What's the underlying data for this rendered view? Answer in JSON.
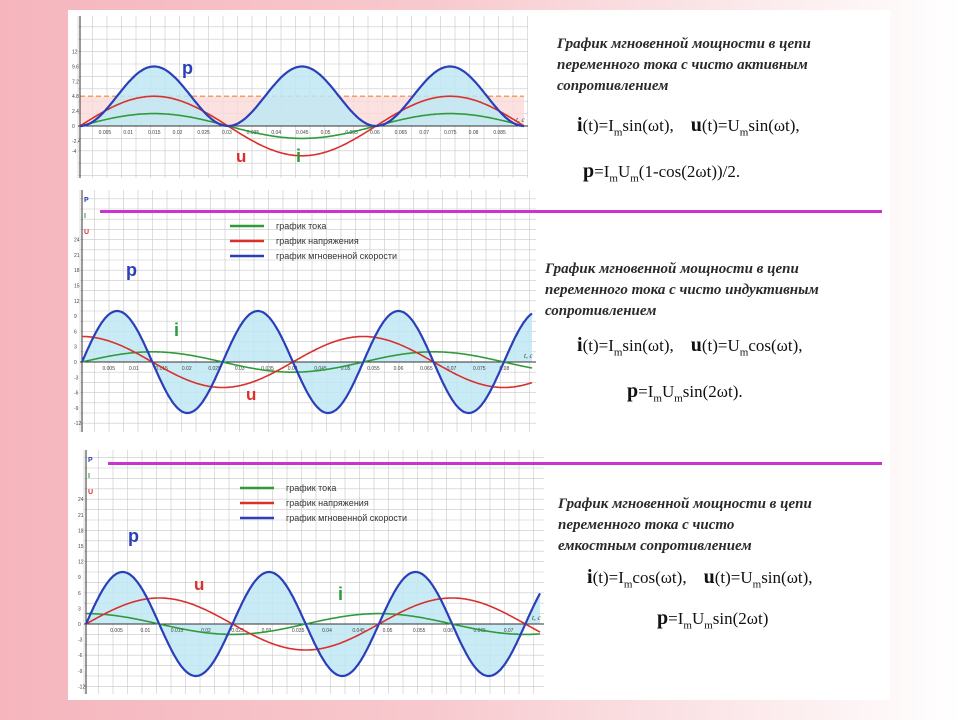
{
  "colors": {
    "power": "#2a3fb8",
    "current": "#2e9a3a",
    "voltage": "#d9302c",
    "fill": "#bfe8f3",
    "grid": "#c8c8c8",
    "avg_line": "#f0a060",
    "avg_band": "#fbdada",
    "divider": "#cc33cc",
    "label_p": "#2a3fb8",
    "label_i": "#2e9a3a",
    "label_u": "#d9302c"
  },
  "panels": [
    {
      "title": "График мгновенной мощности в цепи переменного тока с чисто активным сопротивлением",
      "title_lines": [
        "График мгновенной мощности в цепи",
        "переменного тока с чисто активным",
        "сопротивлением"
      ],
      "formula1": {
        "i_sym": "i",
        "i_text": "(t)=I",
        "i_sub": "m",
        "i_rest": "sin(ωt),",
        "u_sym": "u",
        "u_text": "(t)=U",
        "u_sub": "m",
        "u_rest": "sin(ωt),"
      },
      "formula2": {
        "p_sym": "p",
        "text1": "=I",
        "sub1": "m",
        "text2": "U",
        "sub2": "m",
        "rest": "(1-cos(2ωt))/2."
      },
      "labels": {
        "p": "p",
        "i": "i",
        "u": "u"
      },
      "legend": [],
      "y_axis_labels": [],
      "x_axis_label": "t, c",
      "y_ticks": [
        "-4",
        "-2.4",
        "0",
        "2.4",
        "4.8",
        "7.2",
        "9.6",
        "12"
      ],
      "x_ticks": [
        "0.005",
        "0.01",
        "0.015",
        "0.02",
        "0.025",
        "0.03",
        "0.035",
        "0.04",
        "0.045",
        "0.05",
        "0.055",
        "0.06",
        "0.065",
        "0.07",
        "0.075",
        "0.08",
        "0.085"
      ]
    },
    {
      "title": "График мгновенной мощности в цепи переменного тока с чисто индуктивным сопротивлением",
      "title_lines": [
        "График мгновенной мощности в цепи",
        "переменного тока с чисто индуктивным",
        "сопротивлением"
      ],
      "formula1": {
        "i_sym": "i",
        "i_text": "(t)=I",
        "i_sub": "m",
        "i_rest": "sin(ωt),",
        "u_sym": "u",
        "u_text": "(t)=U",
        "u_sub": "m",
        "u_rest": "cos(ωt),"
      },
      "formula2": {
        "p_sym": "p",
        "text1": "=I",
        "sub1": "m",
        "text2": "U",
        "sub2": "m",
        "rest": "sin(2ωt)."
      },
      "labels": {
        "p": "p",
        "i": "i",
        "u": "u"
      },
      "legend": [
        "график тока",
        "график напряжения",
        "график мгновенной скорости"
      ],
      "y_axis_labels": [
        "P",
        "I",
        "U"
      ],
      "x_axis_label": "t, c",
      "y_ticks": [
        "24",
        "21",
        "18",
        "15",
        "12",
        "9",
        "6",
        "3",
        "0",
        "-3",
        "-6",
        "-9",
        "-12"
      ],
      "x_ticks": [
        "0.005",
        "0.01",
        "0.015",
        "0.02",
        "0.025",
        "0.03",
        "0.035",
        "0.04",
        "0.045",
        "0.05",
        "0.055",
        "0.06",
        "0.065",
        "0.07",
        "0.075",
        "0.08"
      ]
    },
    {
      "title": "График мгновенной мощности в цепи переменного тока с чисто емкостным сопротивлением",
      "title_lines": [
        "График мгновенной мощности в цепи",
        "переменного тока с чисто",
        "емкостным сопротивлением"
      ],
      "formula1": {
        "i_sym": "i",
        "i_text": "(t)=I",
        "i_sub": "m",
        "i_rest": "cos(ωt),",
        "u_sym": "u",
        "u_text": "(t)=U",
        "u_sub": "m",
        "u_rest": "sin(ωt),"
      },
      "formula2": {
        "p_sym": "p",
        "text1": "=I",
        "sub1": "m",
        "text2": "U",
        "sub2": "m",
        "rest": "sin(2ωt)"
      },
      "labels": {
        "p": "p",
        "i": "i",
        "u": "u"
      },
      "legend": [
        "график тока",
        "график напряжения",
        "график мгновенной скорости"
      ],
      "y_axis_labels": [
        "P",
        "I",
        "U"
      ],
      "x_axis_label": "t, c",
      "y_ticks": [
        "24",
        "21",
        "18",
        "15",
        "12",
        "9",
        "6",
        "3",
        "0",
        "-3",
        "-6",
        "-9",
        "-12"
      ],
      "x_ticks": [
        "0.005",
        "0.01",
        "0.015",
        "0.02",
        "0.025",
        "0.03",
        "0.035",
        "0.04",
        "0.045",
        "0.05",
        "0.055",
        "0.06",
        "0.065",
        "0.07"
      ]
    }
  ],
  "chart_data": [
    {
      "type": "line",
      "x_label": "t, c",
      "ylim": [
        -4,
        12
      ],
      "series": [
        {
          "name": "p",
          "function": "ImUm(1-cos(2ωt))/2",
          "amplitude": 9.6,
          "offset": 4.8,
          "periods": 3
        },
        {
          "name": "u",
          "function": "Um sin(ωt)",
          "amplitude": 4.8,
          "periods": 1.5
        },
        {
          "name": "i",
          "function": "Im sin(ωt)",
          "amplitude": 2.0,
          "periods": 1.5
        }
      ],
      "average_power": 4.8
    },
    {
      "type": "line",
      "x_label": "t, c",
      "ylim": [
        -12,
        24
      ],
      "series": [
        {
          "name": "p",
          "function": "ImUm sin(2ωt)",
          "amplitude": 10,
          "periods": 3.2
        },
        {
          "name": "u",
          "function": "Um cos(ωt)",
          "amplitude": 5,
          "periods": 1.6
        },
        {
          "name": "i",
          "function": "Im sin(ωt)",
          "amplitude": 2,
          "periods": 1.6
        }
      ]
    },
    {
      "type": "line",
      "x_label": "t, c",
      "ylim": [
        -12,
        24
      ],
      "series": [
        {
          "name": "p",
          "function": "ImUm sin(2ωt)",
          "amplitude": 10,
          "periods": 3.1
        },
        {
          "name": "u",
          "function": "Um sin(ωt)",
          "amplitude": 5,
          "periods": 1.55
        },
        {
          "name": "i",
          "function": "Im cos(ωt)",
          "amplitude": 2,
          "periods": 1.55
        }
      ]
    }
  ]
}
